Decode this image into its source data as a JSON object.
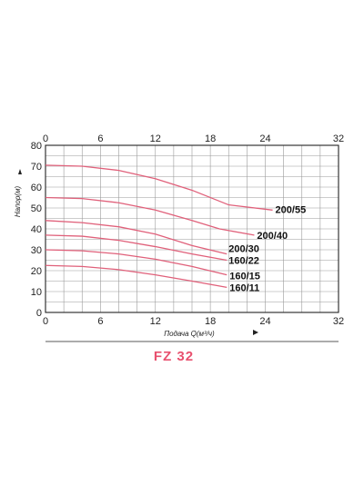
{
  "chart_data": {
    "type": "line",
    "title": "FZ 32",
    "xlabel": "Подача Q(м³/ч)",
    "ylabel": "Напор(м)",
    "xlim": [
      0,
      32
    ],
    "ylim": [
      0,
      80
    ],
    "xticks": [
      "0",
      "6",
      "12",
      "18",
      "24",
      "32"
    ],
    "yticks": [
      "0",
      "10",
      "20",
      "30",
      "40",
      "50",
      "60",
      "70",
      "80"
    ],
    "grid": true,
    "line_color": "#e0607a",
    "title_color": "#e8506e",
    "series": [
      {
        "name": "200/55",
        "x": [
          0,
          4,
          8,
          12,
          16,
          20,
          24.8
        ],
        "y": [
          70.5,
          70,
          68,
          64,
          58.5,
          51.5,
          49
        ]
      },
      {
        "name": "200/40",
        "x": [
          0,
          4,
          8,
          12,
          16,
          19,
          22.8
        ],
        "y": [
          55,
          54.5,
          52.5,
          49,
          44,
          40,
          37
        ]
      },
      {
        "name": "200/30",
        "x": [
          0,
          4,
          8,
          12,
          16,
          19.8
        ],
        "y": [
          44,
          43,
          41,
          37.5,
          32,
          28
        ]
      },
      {
        "name": "160/22",
        "x": [
          0,
          4,
          8,
          12,
          16,
          19.8
        ],
        "y": [
          37,
          36.5,
          34.5,
          31.5,
          28,
          25
        ]
      },
      {
        "name": "160/15",
        "x": [
          0,
          4,
          8,
          12,
          16,
          19.8
        ],
        "y": [
          30,
          29.5,
          28,
          25.5,
          22,
          18
        ]
      },
      {
        "name": "160/11",
        "x": [
          0,
          4,
          8,
          12,
          16,
          19.8
        ],
        "y": [
          22.5,
          22,
          20.5,
          18,
          15,
          12
        ]
      }
    ],
    "annotations": [
      "200/55",
      "200/40",
      "200/30",
      "160/22",
      "160/15",
      "160/11"
    ]
  }
}
